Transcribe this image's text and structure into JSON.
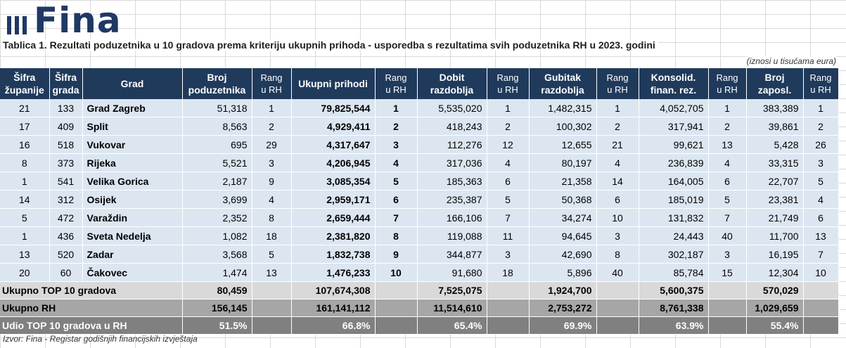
{
  "logo": {
    "text": "Fina"
  },
  "title": "Tablica 1. Rezultati poduzetnika u 10 gradova prema kriteriju ukupnih prihoda - usporedba s rezultatima svih poduzetnika RH u 2023. godini",
  "note": "(iznosi u tisućama eura)",
  "headers": {
    "sifra_zupanije": [
      "Šifra",
      "županije"
    ],
    "sifra_grada": [
      "Šifra",
      "grada"
    ],
    "grad": "Grad",
    "broj_poduzetnika": [
      "Broj",
      "poduzetnika"
    ],
    "rang1": [
      "Rang",
      "u RH"
    ],
    "ukupni_prihodi": "Ukupni prihodi",
    "rang2": [
      "Rang",
      "u RH"
    ],
    "dobit": [
      "Dobit",
      "razdoblja"
    ],
    "rang3": [
      "Rang",
      "u RH"
    ],
    "gubitak": [
      "Gubitak",
      "razdoblja"
    ],
    "rang4": [
      "Rang",
      "u RH"
    ],
    "konsolid": [
      "Konsolid.",
      "finan. rez."
    ],
    "rang5": [
      "Rang",
      "u RH"
    ],
    "zaposl": [
      "Broj",
      "zaposl."
    ],
    "rang6": [
      "Rang",
      "u RH"
    ]
  },
  "rows": [
    [
      "21",
      "133",
      "Grad Zagreb",
      "51,318",
      "1",
      "79,825,544",
      "1",
      "5,535,020",
      "1",
      "1,482,315",
      "1",
      "4,052,705",
      "1",
      "383,389",
      "1"
    ],
    [
      "17",
      "409",
      "Split",
      "8,563",
      "2",
      "4,929,411",
      "2",
      "418,243",
      "2",
      "100,302",
      "2",
      "317,941",
      "2",
      "39,861",
      "2"
    ],
    [
      "16",
      "518",
      "Vukovar",
      "695",
      "29",
      "4,317,647",
      "3",
      "112,276",
      "12",
      "12,655",
      "21",
      "99,621",
      "13",
      "5,428",
      "26"
    ],
    [
      "8",
      "373",
      "Rijeka",
      "5,521",
      "3",
      "4,206,945",
      "4",
      "317,036",
      "4",
      "80,197",
      "4",
      "236,839",
      "4",
      "33,315",
      "3"
    ],
    [
      "1",
      "541",
      "Velika Gorica",
      "2,187",
      "9",
      "3,085,354",
      "5",
      "185,363",
      "6",
      "21,358",
      "14",
      "164,005",
      "6",
      "22,707",
      "5"
    ],
    [
      "14",
      "312",
      "Osijek",
      "3,699",
      "4",
      "2,959,171",
      "6",
      "235,387",
      "5",
      "50,368",
      "6",
      "185,019",
      "5",
      "23,381",
      "4"
    ],
    [
      "5",
      "472",
      "Varaždin",
      "2,352",
      "8",
      "2,659,444",
      "7",
      "166,106",
      "7",
      "34,274",
      "10",
      "131,832",
      "7",
      "21,749",
      "6"
    ],
    [
      "1",
      "436",
      "Sveta Nedelja",
      "1,082",
      "18",
      "2,381,820",
      "8",
      "119,088",
      "11",
      "94,645",
      "3",
      "24,443",
      "40",
      "11,700",
      "13"
    ],
    [
      "13",
      "520",
      "Zadar",
      "3,568",
      "5",
      "1,832,738",
      "9",
      "344,877",
      "3",
      "42,690",
      "8",
      "302,187",
      "3",
      "16,195",
      "7"
    ],
    [
      "20",
      "60",
      "Čakovec",
      "1,474",
      "13",
      "1,476,233",
      "10",
      "91,680",
      "18",
      "5,896",
      "40",
      "85,784",
      "15",
      "12,304",
      "10"
    ]
  ],
  "summary": [
    {
      "label": "Ukupno TOP 10 gradova",
      "values": [
        "80,459",
        "107,674,308",
        "7,525,075",
        "1,924,700",
        "5,600,375",
        "570,029"
      ]
    },
    {
      "label": "Ukupno RH",
      "values": [
        "156,145",
        "161,141,112",
        "11,514,610",
        "2,753,272",
        "8,761,338",
        "1,029,659"
      ]
    },
    {
      "label": "Udio TOP 10 gradova u RH",
      "values": [
        "51.5%",
        "66.8%",
        "65.4%",
        "69.9%",
        "63.9%",
        "55.4%"
      ]
    }
  ],
  "source": "Izvor: Fina - Registar godišnjih financijskih izvještaja",
  "colors": {
    "header_bg": "#203a5c",
    "row_bg": "#dce6f1",
    "sum1": "#d9d9d9",
    "sum2": "#a6a6a6",
    "sum3": "#808080",
    "logo": "#1f3864"
  }
}
